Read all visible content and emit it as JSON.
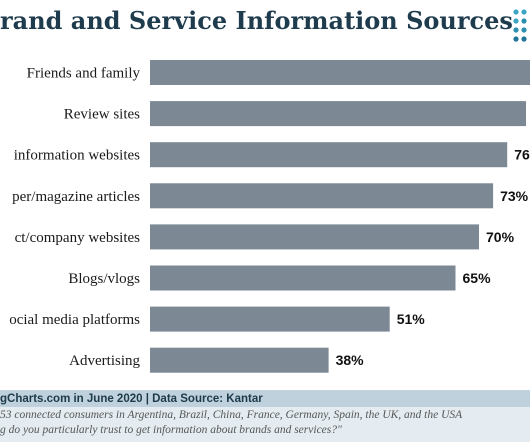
{
  "title": "rand and Service Information Sources",
  "logo_icon": "dot-grid-logo-icon",
  "colors": {
    "bar": "#7c8894",
    "title": "#1f3c4e",
    "footer_bg": "#e4ecf1",
    "credit_bg": "#bfd1dc"
  },
  "chart_data": {
    "type": "bar",
    "orientation": "horizontal",
    "title": "rand and Service Information Sources",
    "categories": [
      "Friends and family",
      "Review sites",
      "information websites",
      "per/magazine articles",
      "ct/company websites",
      "Blogs/vlogs",
      "ocial media platforms",
      "Advertising"
    ],
    "values": [
      null,
      null,
      76,
      73,
      70,
      65,
      51,
      38
    ],
    "value_labels": [
      "",
      "",
      "76",
      "73%",
      "70%",
      "65%",
      "51%",
      "38%"
    ],
    "bar_extent_percent": [
      81,
      80,
      76,
      73,
      70,
      65,
      51,
      38
    ],
    "xlim": [
      0,
      100
    ],
    "grid": false,
    "legend": "none"
  },
  "footer": {
    "credit": "gCharts.com in June 2020 | Data Source: Kantar",
    "note1": "53 connected consumers in Argentina, Brazil, China, France, Germany, Spain, the UK, and the USA",
    "note2": "g do you particularly trust to get information about brands and services?\""
  }
}
